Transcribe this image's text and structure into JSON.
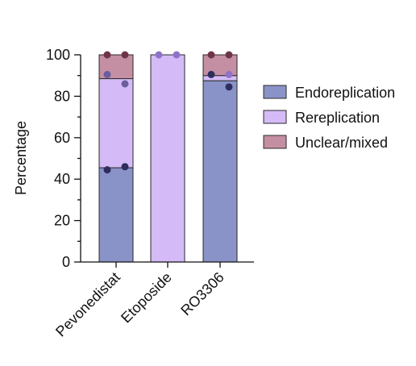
{
  "chart_data": {
    "type": "bar",
    "stacked": true,
    "categories": [
      "Pevonedistat",
      "Etoposide",
      "RO3306"
    ],
    "series": [
      {
        "name": "Endoreplication",
        "color": "#8a93c8",
        "values": [
          45.5,
          0,
          87.5
        ]
      },
      {
        "name": "Rereplication",
        "color": "#d4bbf7",
        "values": [
          43,
          100,
          2.5
        ]
      },
      {
        "name": "Unclear/mixed",
        "color": "#c58fa3",
        "values": [
          11.5,
          0,
          10
        ]
      }
    ],
    "points": [
      {
        "category": "Pevonedistat",
        "offset": -1,
        "y": 44.5,
        "color": "#2e2d5e"
      },
      {
        "category": "Pevonedistat",
        "offset": 1,
        "y": 46,
        "color": "#2e2d5e"
      },
      {
        "category": "Pevonedistat",
        "offset": -1,
        "y": 90.5,
        "color": "#6a5ea0"
      },
      {
        "category": "Pevonedistat",
        "offset": 1,
        "y": 86,
        "color": "#6a5ea0"
      },
      {
        "category": "Pevonedistat",
        "offset": -1,
        "y": 100,
        "color": "#6e3448"
      },
      {
        "category": "Pevonedistat",
        "offset": 1,
        "y": 100,
        "color": "#6e3448"
      },
      {
        "category": "Etoposide",
        "offset": -1,
        "y": 100,
        "color": "#8e72c8"
      },
      {
        "category": "Etoposide",
        "offset": 1,
        "y": 100,
        "color": "#8e72c8"
      },
      {
        "category": "RO3306",
        "offset": -1,
        "y": 90.5,
        "color": "#2e2d5e"
      },
      {
        "category": "RO3306",
        "offset": 1,
        "y": 84.5,
        "color": "#2e2d5e"
      },
      {
        "category": "RO3306",
        "offset": 1,
        "y": 90.5,
        "color": "#8e72c8"
      },
      {
        "category": "RO3306",
        "offset": -1,
        "y": 100,
        "color": "#6e3448"
      },
      {
        "category": "RO3306",
        "offset": 1,
        "y": 100,
        "color": "#6e3448"
      }
    ],
    "ylabel": "Percentage",
    "xlabel": "",
    "ylim": [
      0,
      100
    ],
    "yticks": [
      0,
      20,
      40,
      60,
      80,
      100
    ],
    "grid": false,
    "legend_position": "right"
  }
}
